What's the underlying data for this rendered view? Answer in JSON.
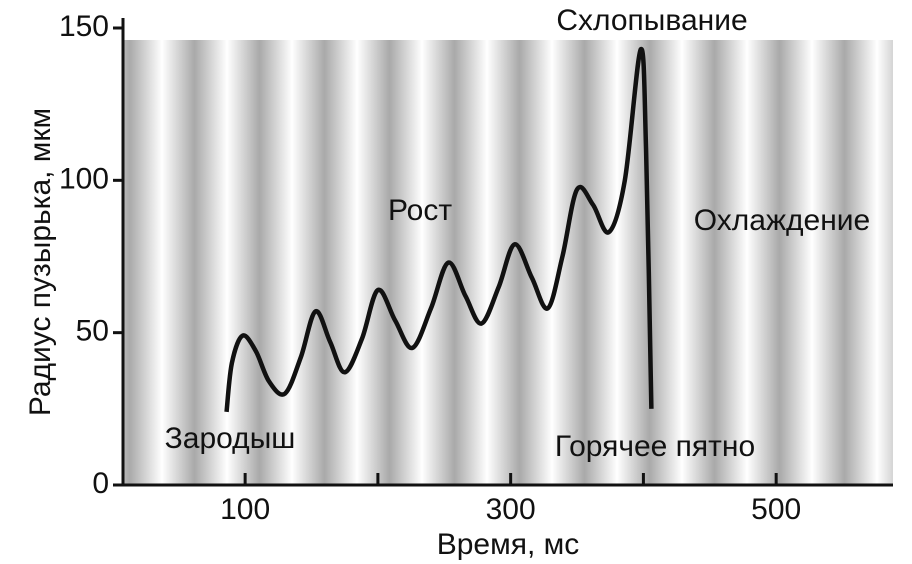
{
  "chart_data": {
    "type": "line",
    "ylabel": "Радиус пузырька, мкм",
    "xlabel": "Время, мс",
    "x": [
      86,
      90,
      98,
      108,
      118,
      130,
      142,
      153,
      164,
      175,
      188,
      200,
      213,
      226,
      240,
      253,
      266,
      278,
      291,
      303,
      316,
      328,
      339,
      350,
      362,
      374,
      386,
      398,
      402,
      406
    ],
    "series": [
      {
        "name": "Радиус",
        "color": "#111111",
        "values": [
          24,
          40,
          49,
          44,
          34,
          30,
          42,
          57,
          47,
          37,
          48,
          64,
          54,
          45,
          58,
          73,
          62,
          53,
          65,
          79,
          68,
          58,
          75,
          97,
          92,
          83,
          100,
          143,
          110,
          25
        ]
      }
    ],
    "xlim": [
      8,
      588
    ],
    "ylim": [
      0,
      150
    ],
    "xticks": [
      100,
      300,
      500
    ],
    "xminor_ticks": [
      200,
      400
    ],
    "yticks": [
      0,
      50,
      100,
      150
    ],
    "annotations": [
      "Схлопывание",
      "Рост",
      "Охлаждение",
      "Зародыш",
      "Горячее пятно"
    ]
  }
}
